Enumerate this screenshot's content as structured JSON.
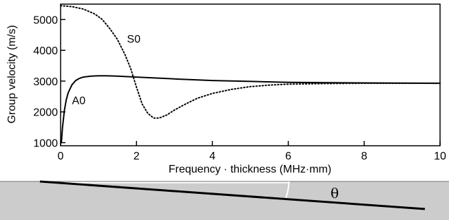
{
  "chart_data": {
    "type": "line",
    "title": "",
    "xlabel": "Frequency · thickness (MHz·mm)",
    "ylabel": "Group velocity (m/s)",
    "xlim": [
      0,
      10
    ],
    "ylim": [
      900,
      5500
    ],
    "xticks": [
      0,
      2,
      4,
      6,
      8,
      10
    ],
    "yticks": [
      1000,
      2000,
      3000,
      4000,
      5000
    ],
    "grid": false,
    "legend": "none",
    "series": [
      {
        "name": "A0",
        "style": "solid",
        "color": "#000000",
        "x": [
          0.02,
          0.05,
          0.1,
          0.15,
          0.2,
          0.3,
          0.4,
          0.5,
          0.6,
          0.8,
          1.0,
          1.2,
          1.5,
          2.0,
          3.0,
          4.0,
          5.0,
          6.0,
          7.0,
          8.0,
          10.0
        ],
        "y": [
          1000,
          1500,
          2050,
          2400,
          2620,
          2880,
          3020,
          3090,
          3130,
          3160,
          3170,
          3170,
          3160,
          3130,
          3070,
          3020,
          2990,
          2960,
          2950,
          2940,
          2930
        ]
      },
      {
        "name": "S0",
        "style": "dotted",
        "color": "#000000",
        "x": [
          0.0,
          0.3,
          0.6,
          0.9,
          1.1,
          1.3,
          1.5,
          1.7,
          1.85,
          2.0,
          2.15,
          2.3,
          2.45,
          2.6,
          2.8,
          3.0,
          3.3,
          3.6,
          4.0,
          4.5,
          5.0,
          5.5,
          6.0,
          6.5,
          7.0,
          7.5,
          8.0,
          10.0
        ],
        "y": [
          5450,
          5420,
          5340,
          5180,
          5000,
          4700,
          4350,
          3850,
          3400,
          2800,
          2250,
          1950,
          1800,
          1800,
          1900,
          2060,
          2260,
          2440,
          2600,
          2730,
          2820,
          2870,
          2900,
          2910,
          2920,
          2925,
          2930,
          2930
        ]
      }
    ],
    "annotations": [
      {
        "text": "S0",
        "x": 1.75,
        "y": 4250
      },
      {
        "text": "A0",
        "x": 0.3,
        "y": 2250
      }
    ]
  },
  "bottom_figure": {
    "angle_label": "θ",
    "plate_color": "#cccccc",
    "line_color": "#000000"
  }
}
